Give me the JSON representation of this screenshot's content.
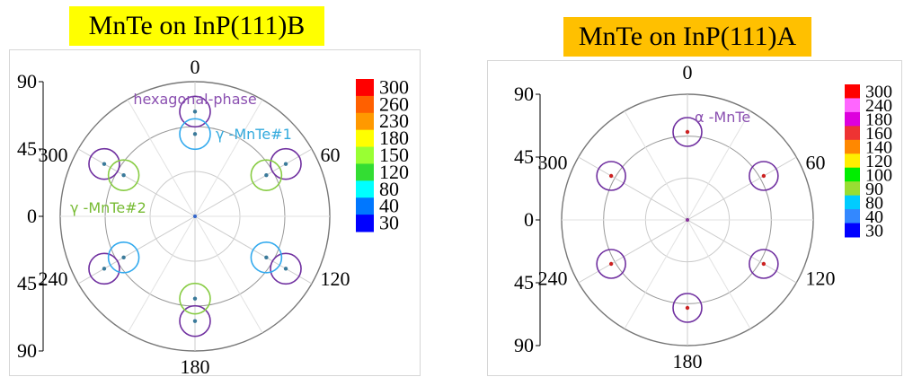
{
  "chart_data": [
    {
      "type": "polar-scatter",
      "title": "MnTe on InP(111)B",
      "title_bg": "#ffff00",
      "radial_axis": {
        "ticks": [
          "90",
          "45",
          "0",
          "45",
          "90"
        ],
        "range": [
          0,
          90
        ]
      },
      "angular_ticks": [
        "0",
        "60",
        "120",
        "180",
        "240",
        "300"
      ],
      "colorbar": {
        "labels": [
          "300",
          "260",
          "230",
          "180",
          "150",
          "120",
          "80",
          "40",
          "30"
        ],
        "colors": [
          "#ff0000",
          "#ff6000",
          "#ff9900",
          "#ffff00",
          "#99ff33",
          "#33dd33",
          "#00ffff",
          "#0077ff",
          "#0000ff"
        ]
      },
      "annotations": [
        {
          "text": "hexagonal-phase",
          "color": "#8a4fb0"
        },
        {
          "text": "γ -MnTe#1",
          "color": "#33aadd"
        },
        {
          "text": "γ -MnTe#2",
          "color": "#77bb33"
        }
      ],
      "series": [
        {
          "name": "hexagonal-phase",
          "circle_color": "#7030a0",
          "points": [
            {
              "phi": 0,
              "psi": 70
            },
            {
              "phi": 60,
              "psi": 70
            },
            {
              "phi": 120,
              "psi": 70
            },
            {
              "phi": 180,
              "psi": 70
            },
            {
              "phi": 240,
              "psi": 70
            },
            {
              "phi": 300,
              "psi": 70
            }
          ]
        },
        {
          "name": "γ -MnTe#1",
          "circle_color": "#33aaee",
          "points": [
            {
              "phi": 0,
              "psi": 55
            },
            {
              "phi": 120,
              "psi": 55
            },
            {
              "phi": 240,
              "psi": 55
            }
          ]
        },
        {
          "name": "γ -MnTe#2",
          "circle_color": "#88cc44",
          "points": [
            {
              "phi": 60,
              "psi": 55
            },
            {
              "phi": 180,
              "psi": 55
            },
            {
              "phi": 300,
              "psi": 55
            }
          ]
        }
      ],
      "center_point": {
        "phi": 0,
        "psi": 0
      }
    },
    {
      "type": "polar-scatter",
      "title": "MnTe on InP(111)A",
      "title_bg": "#ffc000",
      "radial_axis": {
        "ticks": [
          "90",
          "45",
          "0",
          "45",
          "90"
        ],
        "range": [
          0,
          90
        ]
      },
      "angular_ticks": [
        "0",
        "60",
        "120",
        "180",
        "240",
        "300"
      ],
      "colorbar": {
        "labels": [
          "300",
          "240",
          "180",
          "160",
          "140",
          "120",
          "100",
          "90",
          "80",
          "40",
          "30"
        ],
        "colors": [
          "#ff0000",
          "#ff66ff",
          "#dd00dd",
          "#ee3333",
          "#ff8800",
          "#ffee00",
          "#00ee00",
          "#99dd33",
          "#00ccff",
          "#3388ff",
          "#0000ff"
        ]
      },
      "annotations": [
        {
          "text": "α -MnTe",
          "color": "#8a4fb0"
        }
      ],
      "series": [
        {
          "name": "α -MnTe",
          "circle_color": "#7030a0",
          "points": [
            {
              "phi": 0,
              "psi": 63
            },
            {
              "phi": 60,
              "psi": 63
            },
            {
              "phi": 120,
              "psi": 63
            },
            {
              "phi": 180,
              "psi": 63
            },
            {
              "phi": 240,
              "psi": 63
            },
            {
              "phi": 300,
              "psi": 63
            }
          ]
        }
      ],
      "center_point": {
        "phi": 0,
        "psi": 0
      }
    }
  ]
}
